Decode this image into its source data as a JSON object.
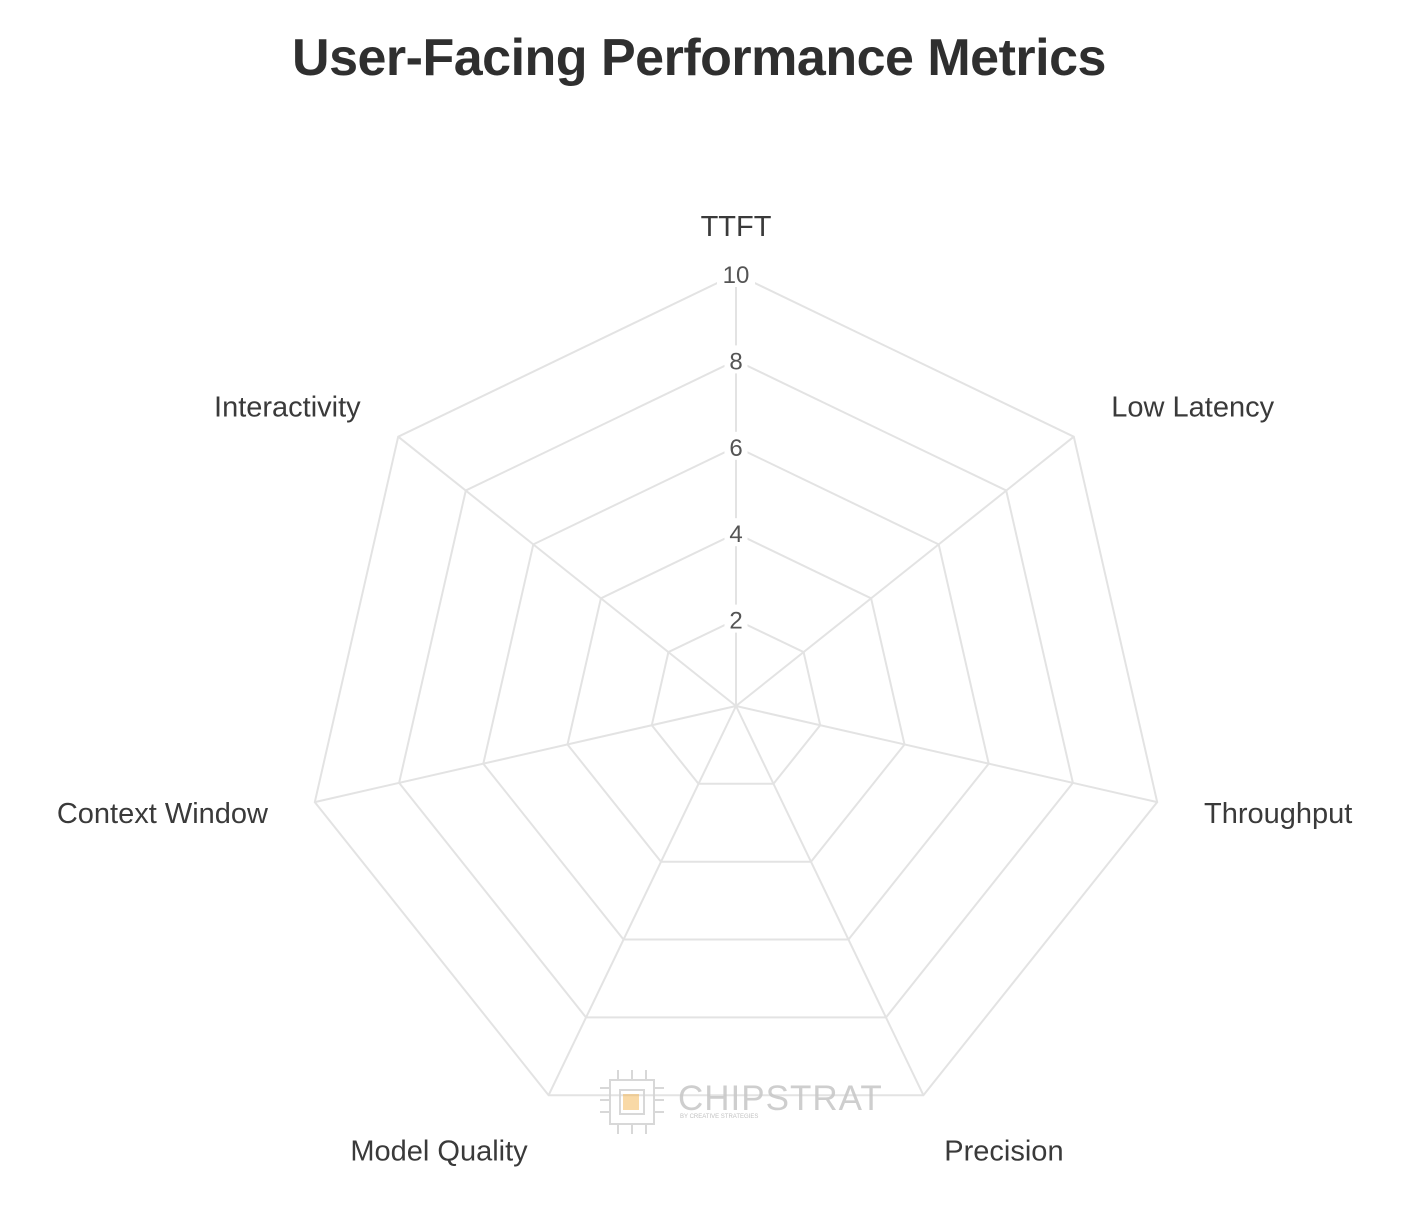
{
  "chart_data": {
    "type": "radar",
    "title": "User-Facing Performance Metrics",
    "axes": [
      "TTFT",
      "Low Latency",
      "Throughput",
      "Precision",
      "Model Quality",
      "Context Window",
      "Interactivity"
    ],
    "r_ticks": [
      2,
      4,
      6,
      8,
      10
    ],
    "r_range": [
      0,
      10
    ],
    "series": [],
    "grid": true,
    "grid_color": "#e3e3e3"
  },
  "watermark": {
    "brand": "CHIPSTRAT",
    "tagline": "BY CREATIVE STRATEGIES",
    "accent": "#f2b24a"
  }
}
